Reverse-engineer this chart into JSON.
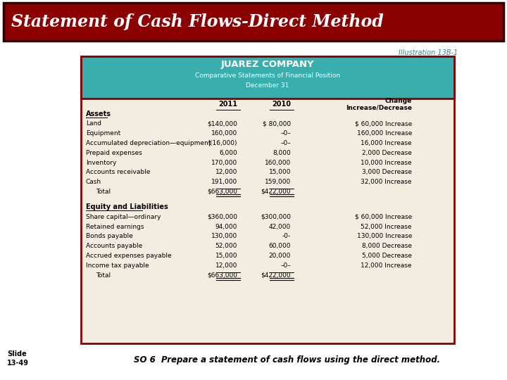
{
  "title": "Statement of Cash Flows-Direct Method",
  "title_bg": "#8B0000",
  "title_color": "#FFFFFF",
  "illustration": "Illustration 13B-1",
  "illustration_color": "#2E8B8B",
  "company": "JUAREZ COMPANY",
  "subtitle1": "Comparative Statements of Financial Position",
  "subtitle2": "December 31",
  "header_bg": "#3AADAD",
  "table_bg": "#F2EDE0",
  "border_color": "#8B0000",
  "assets_label": "Assets",
  "assets_rows": [
    [
      "Land",
      "$140,000",
      "$ 80,000",
      "$ 60,000 Increase"
    ],
    [
      "Equipment",
      "160,000",
      "–0–",
      "160,000 Increase"
    ],
    [
      "Accumulated depreciation—equipment",
      "|(16,000)",
      "–0–",
      "16,000 Increase"
    ],
    [
      "Prepaid expenses",
      "6,000",
      "8,000",
      "2,000 Decrease"
    ],
    [
      "Inventory",
      "170,000",
      "160,000",
      "10,000 Increase"
    ],
    [
      "Accounts receivable",
      "12,000",
      "15,000",
      "3,000 Decrease"
    ],
    [
      "Cash",
      "191,000",
      "159,000",
      "32,000 Increase"
    ]
  ],
  "assets_total_label": "Total",
  "assets_total_2011": "$663,000",
  "assets_total_2010": "$422,000",
  "equity_label": "Equity and Liabilities",
  "equity_rows": [
    [
      "Share capital—ordinary",
      "$360,000",
      "$300,000",
      "$ 60,000 Increase"
    ],
    [
      "Retained earnings",
      "94,000",
      "42,000",
      "52,000 Increase"
    ],
    [
      "Bonds payable",
      "130,000",
      "-0-",
      "130,000 Increase"
    ],
    [
      "Accounts payable",
      "52,000",
      "60,000",
      "8,000 Decrease"
    ],
    [
      "Accrued expenses payable",
      "15,000",
      "20,000",
      "5,000 Decrease"
    ],
    [
      "Income tax payable",
      "12,000",
      "–0–",
      "12,000 Increase"
    ]
  ],
  "equity_total_label": "Total",
  "equity_total_2011": "$663,000",
  "equity_total_2010": "$422,000",
  "slide_text": "Slide\n13-49",
  "bottom_text": "SO 6  Prepare a statement of cash flows using the direct method.",
  "bg_color": "#FFFFFF"
}
